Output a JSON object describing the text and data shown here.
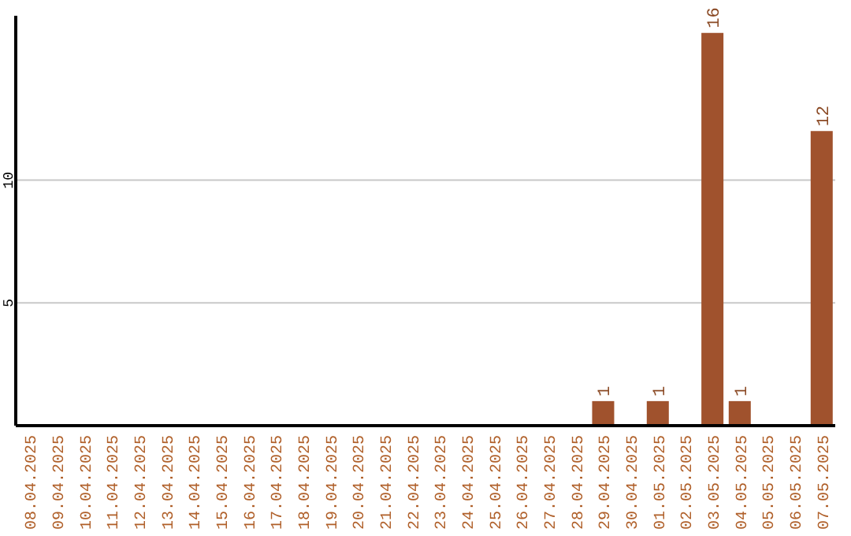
{
  "chart_data": {
    "type": "bar",
    "categories": [
      "08.04.2025",
      "09.04.2025",
      "10.04.2025",
      "11.04.2025",
      "12.04.2025",
      "13.04.2025",
      "14.04.2025",
      "15.04.2025",
      "16.04.2025",
      "17.04.2025",
      "18.04.2025",
      "19.04.2025",
      "20.04.2025",
      "21.04.2025",
      "22.04.2025",
      "23.04.2025",
      "24.04.2025",
      "25.04.2025",
      "26.04.2025",
      "27.04.2025",
      "28.04.2025",
      "29.04.2025",
      "30.04.2025",
      "01.05.2025",
      "02.05.2025",
      "03.05.2025",
      "04.05.2025",
      "05.05.2025",
      "06.05.2025",
      "07.05.2025"
    ],
    "values": [
      0,
      0,
      0,
      0,
      0,
      0,
      0,
      0,
      0,
      0,
      0,
      0,
      0,
      0,
      0,
      0,
      0,
      0,
      0,
      0,
      0,
      1,
      0,
      1,
      0,
      16,
      1,
      0,
      0,
      12
    ],
    "value_labels": [
      null,
      null,
      null,
      null,
      null,
      null,
      null,
      null,
      null,
      null,
      null,
      null,
      null,
      null,
      null,
      null,
      null,
      null,
      null,
      null,
      null,
      "1",
      null,
      "1",
      null,
      "16",
      "1",
      null,
      null,
      "12"
    ],
    "color": "#a0522d",
    "ylim": [
      0,
      16.7
    ],
    "yticks": [
      5,
      10
    ],
    "grid": "y",
    "legend": false
  }
}
